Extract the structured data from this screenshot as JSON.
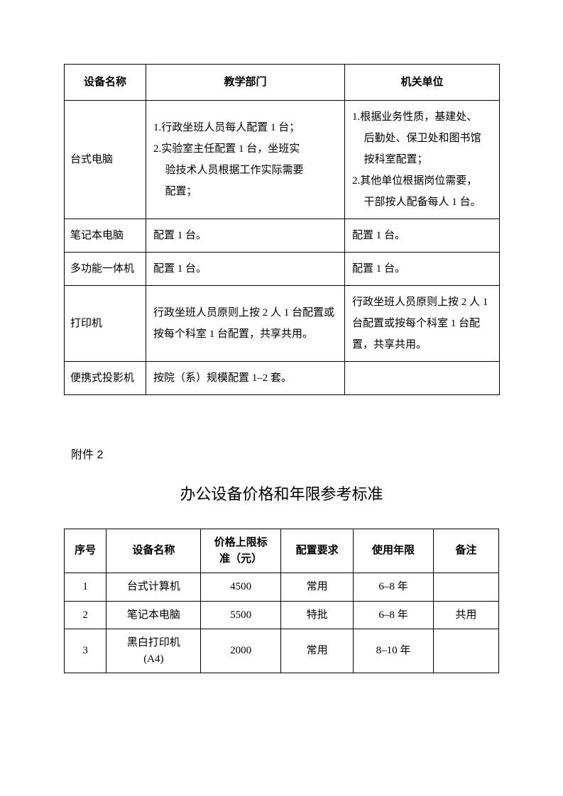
{
  "table1": {
    "headers": {
      "c1": "设备名称",
      "c2": "教学部门",
      "c3": "机关单位"
    },
    "rows": [
      {
        "name": "台式电脑",
        "dept_l1": "1.行政坐班人员每人配置 1 台；",
        "dept_l2": "2.实验室主任配置 1 台，坐班实",
        "dept_l2b": "验技术人员根据工作实际需要",
        "dept_l2c": "配置；",
        "unit_l1": "1.根据业务性质，基建处、",
        "unit_l1b": "后勤处、保卫处和图书馆",
        "unit_l1c": "按科室配置；",
        "unit_l2": "2.其他单位根据岗位需要，",
        "unit_l2b": "干部按人配备每人 1 台。"
      },
      {
        "name": "笔记本电脑",
        "dept": "配置 1 台。",
        "unit": "配置 1 台。"
      },
      {
        "name": "多功能一体机",
        "dept": "配置 1 台。",
        "unit": "配置 1 台。"
      },
      {
        "name": "打印机",
        "dept": "行政坐班人员原则上按 2 人 1 台配置或按每个科室 1 台配置，共享共用。",
        "unit": "行政坐班人员原则上按 2 人 1 台配置或按每个科室 1 台配置，共享共用。"
      },
      {
        "name": "便携式投影机",
        "dept": "按院（系）规模配置 1–2 套。",
        "unit": ""
      }
    ]
  },
  "attachment_label": "附件 2",
  "title2": "办公设备价格和年限参考标准",
  "table2": {
    "headers": {
      "c1": "序号",
      "c2": "设备名称",
      "c3a": "价格上限标",
      "c3b": "准（元）",
      "c4": "配置要求",
      "c5": "使用年限",
      "c6": "备注"
    },
    "rows": [
      {
        "no": "1",
        "name": "台式计算机",
        "price": "4500",
        "req": "常用",
        "years": "6–8 年",
        "note": ""
      },
      {
        "no": "2",
        "name": "笔记本电脑",
        "price": "5500",
        "req": "特批",
        "years": "6–8 年",
        "note": "共用"
      },
      {
        "no": "3",
        "name_a": "黑白打印机",
        "name_b": "(A4)",
        "price": "2000",
        "req": "常用",
        "years": "8–10 年",
        "note": ""
      }
    ]
  }
}
